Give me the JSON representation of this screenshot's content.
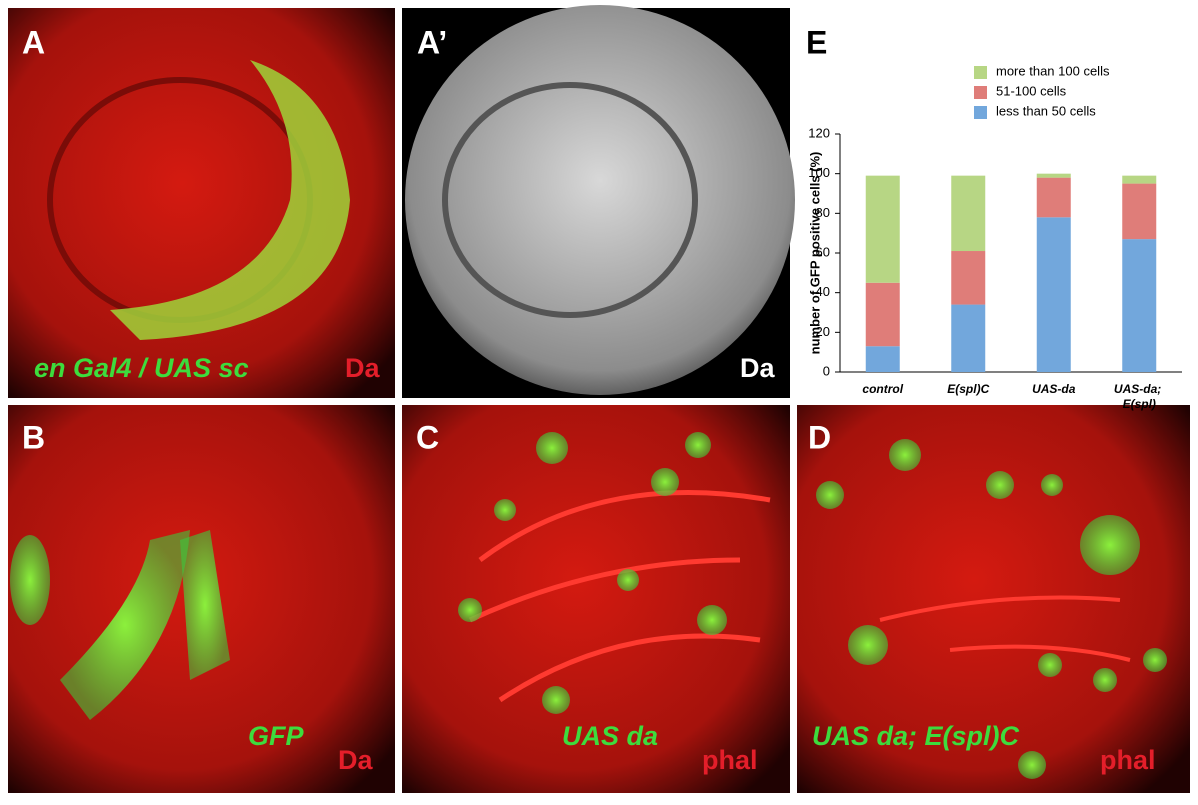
{
  "panels": [
    {
      "label": "A",
      "captions": [
        "en Gal4 / UAS sc",
        "Da"
      ]
    },
    {
      "label": "A’",
      "captions": [
        "Da"
      ]
    },
    {
      "label": "B",
      "captions": [
        "GFP",
        "Da"
      ]
    },
    {
      "label": "C",
      "captions": [
        "UAS da",
        "phal"
      ]
    },
    {
      "label": "D",
      "captions": [
        "UAS da; E(spl)C",
        "phal"
      ]
    },
    {
      "label": "E"
    }
  ],
  "chart_data": {
    "type": "stacked_bar",
    "y_label": "number of GFP positive cells (%)",
    "categories": [
      "control",
      "E(spl)C",
      "UAS-da",
      "UAS-da; E(spl)"
    ],
    "series": [
      {
        "name": "less than 50 cells",
        "color": "#72a7dc",
        "values": [
          13,
          34,
          78,
          67
        ]
      },
      {
        "name": "51-100 cells",
        "color": "#df7d79",
        "values": [
          32,
          27,
          20,
          28
        ]
      },
      {
        "name": "more than 100 cells",
        "color": "#b7d684",
        "values": [
          54,
          38,
          2,
          4
        ]
      }
    ],
    "ylim": [
      0,
      120
    ],
    "yticks": [
      0,
      20,
      40,
      60,
      80,
      100,
      120
    ]
  }
}
